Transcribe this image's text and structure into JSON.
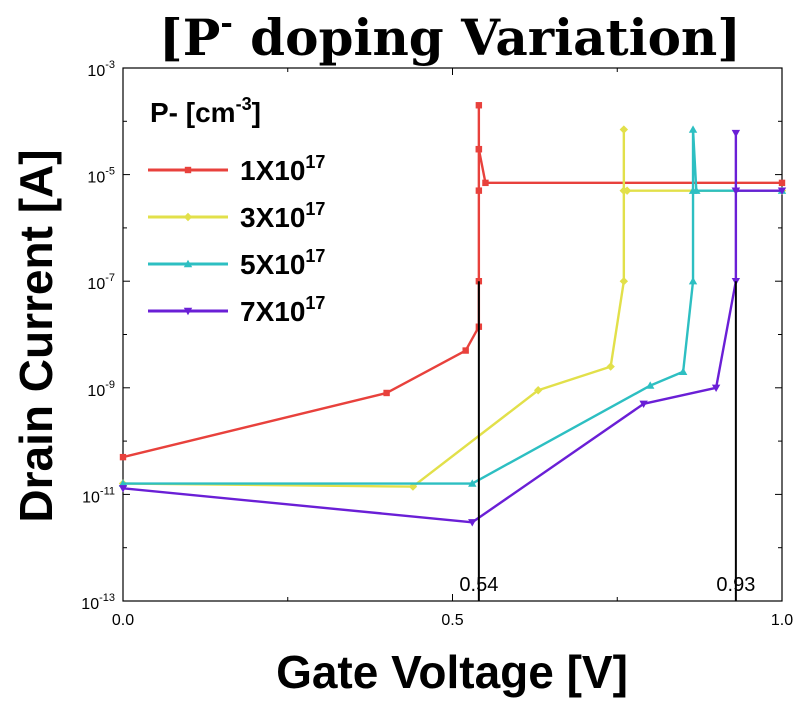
{
  "chart_data": {
    "type": "line",
    "title": {
      "prefix": "[P",
      "sup": "-",
      "rest": " doping Variation]"
    },
    "xlabel": "Gate Voltage [V]",
    "ylabel": "Drain Current [A]",
    "xlim": [
      0,
      1.0
    ],
    "ylim_exp": [
      -13,
      -3
    ],
    "yscale": "log",
    "x_ticks": [
      {
        "value": 0.0,
        "label": "0.0"
      },
      {
        "value": 0.5,
        "label": "0.5"
      },
      {
        "value": 1.0,
        "label": "1.0"
      }
    ],
    "y_ticks": [
      {
        "exp": -3,
        "base": "10",
        "sup": "-3"
      },
      {
        "exp": -5,
        "base": "10",
        "sup": "-5"
      },
      {
        "exp": -7,
        "base": "10",
        "sup": "-7"
      },
      {
        "exp": -9,
        "base": "10",
        "sup": "-9"
      },
      {
        "exp": -11,
        "base": "10",
        "sup": "-11"
      },
      {
        "exp": -13,
        "base": "10",
        "sup": "-13"
      }
    ],
    "legend": {
      "title": "P- [cm",
      "title_sup": "-3",
      "title_end": "]",
      "position": "top-left"
    },
    "series": [
      {
        "name": "1X10",
        "name_sup": "17",
        "color": "#e8413c",
        "marker": "square",
        "x": [
          0.0,
          0.4,
          0.52,
          0.54,
          0.54,
          0.54,
          0.54,
          0.54,
          0.54,
          0.55,
          1.0
        ],
        "y": [
          "5e-11",
          "8e-10",
          "5e-9",
          "1.4e-8",
          "1e-7",
          "5e-6",
          "3e-5",
          "2e-4",
          "3e-5",
          "7e-6",
          "7e-6"
        ]
      },
      {
        "name": "3X10",
        "name_sup": "17",
        "color": "#e2e04a",
        "marker": "diamond",
        "x": [
          0.0,
          0.44,
          0.63,
          0.74,
          0.76,
          0.76,
          0.76,
          0.76,
          0.765,
          1.0
        ],
        "y": [
          "1.6e-11",
          "1.4e-11",
          "9e-10",
          "2.5e-9",
          "1e-7",
          "5e-6",
          "7e-5",
          "5e-6",
          "5e-6",
          "5e-6"
        ]
      },
      {
        "name": "5X10",
        "name_sup": "17",
        "color": "#2dbfc2",
        "marker": "triangle-up",
        "x": [
          0.0,
          0.53,
          0.8,
          0.85,
          0.865,
          0.865,
          0.865,
          0.87,
          1.0
        ],
        "y": [
          "1.6e-11",
          "1.6e-11",
          "1.1e-9",
          "2e-9",
          "1e-7",
          "5e-6",
          "7e-5",
          "5e-6",
          "5e-6"
        ]
      },
      {
        "name": "7X10",
        "name_sup": "17",
        "color": "#6a1fd6",
        "marker": "triangle-down",
        "x": [
          0.0,
          0.53,
          0.79,
          0.9,
          0.93,
          0.93,
          0.93,
          0.93,
          1.0
        ],
        "y": [
          "1.3e-11",
          "3e-12",
          "5e-10",
          "1e-9",
          "1e-7",
          "5e-6",
          "6e-5",
          "5e-6",
          "5e-6"
        ]
      }
    ],
    "annotations": [
      {
        "x": 0.54,
        "y_top": "1e-7",
        "label": "0.54"
      },
      {
        "x": 0.93,
        "y_top": "1e-7",
        "label": "0.93"
      }
    ],
    "grid": false
  }
}
